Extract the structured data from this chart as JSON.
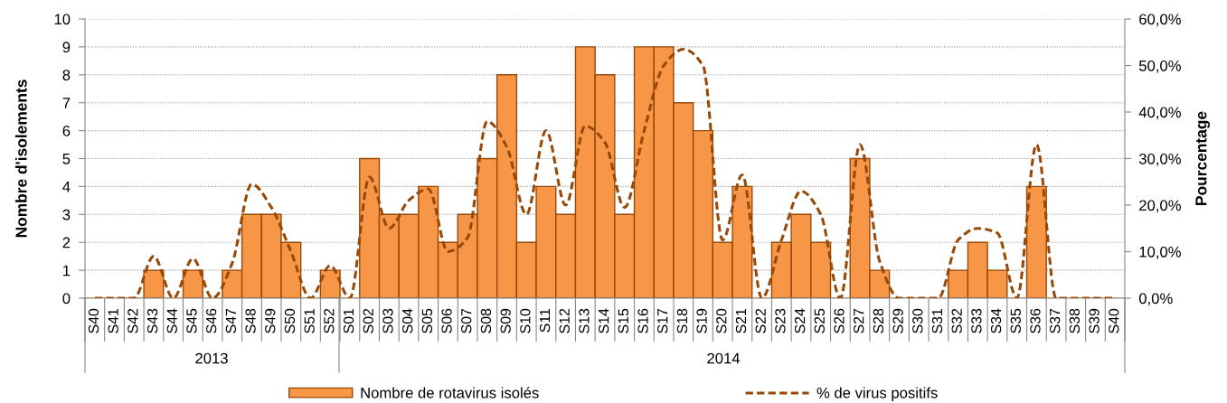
{
  "chart_data": {
    "type": "bar",
    "ylabel": "Nombre d'isolements",
    "y2label": "Pourcentage",
    "categories": [
      "S40",
      "S41",
      "S42",
      "S43",
      "S44",
      "S45",
      "S46",
      "S47",
      "S48",
      "S49",
      "S50",
      "S51",
      "S52",
      "S01",
      "S02",
      "S03",
      "S04",
      "S05",
      "S06",
      "S07",
      "S08",
      "S09",
      "S10",
      "S11",
      "S12",
      "S13",
      "S14",
      "S15",
      "S16",
      "S17",
      "S18",
      "S19",
      "S20",
      "S21",
      "S22",
      "S23",
      "S24",
      "S25",
      "S26",
      "S27",
      "S28",
      "S29",
      "S30",
      "S31",
      "S32",
      "S33",
      "S34",
      "S35",
      "S36",
      "S37",
      "S38",
      "S39",
      "S40"
    ],
    "series": [
      {
        "name": "Nombre de rotavirus isolés",
        "color": "#f79646",
        "values": [
          0,
          0,
          0,
          1,
          0,
          1,
          0,
          1,
          3,
          3,
          2,
          0,
          1,
          0,
          5,
          3,
          3,
          4,
          2,
          3,
          5,
          8,
          2,
          4,
          3,
          9,
          8,
          3,
          9,
          9,
          7,
          6,
          2,
          4,
          0,
          2,
          3,
          2,
          0,
          5,
          1,
          0,
          0,
          0,
          1,
          2,
          1,
          0,
          4,
          0,
          0,
          0,
          0
        ]
      },
      {
        "name": "% de virus positifs",
        "type": "line",
        "axis": "y2",
        "color": "#984807",
        "line_style": "dashed",
        "values": [
          0,
          0,
          0,
          9,
          0,
          8.5,
          0,
          7.5,
          24.5,
          19.5,
          10,
          0,
          7,
          0,
          26,
          15,
          21,
          23.5,
          10,
          13,
          38,
          32.5,
          18,
          36,
          20,
          37,
          33.5,
          19.5,
          36,
          50,
          53.5,
          50,
          12.5,
          26.5,
          0,
          12.5,
          23,
          18,
          0,
          33,
          8,
          0,
          0,
          0,
          12.5,
          15,
          14,
          0,
          33,
          0,
          0,
          0,
          0
        ]
      }
    ],
    "ylim": [
      0,
      10
    ],
    "yticks": [
      0,
      1,
      2,
      3,
      4,
      5,
      6,
      7,
      8,
      9,
      10
    ],
    "y2lim": [
      0,
      60
    ],
    "y2ticks": [
      {
        "value": 0,
        "label": "0,0%"
      },
      {
        "value": 10,
        "label": "10,0%"
      },
      {
        "value": 20,
        "label": "20,0%"
      },
      {
        "value": 30,
        "label": "30,0%"
      },
      {
        "value": 40,
        "label": "40,0%"
      },
      {
        "value": 50,
        "label": "50,0%"
      },
      {
        "value": 60,
        "label": "60,0%"
      }
    ],
    "grid": "y",
    "legend": "bottom",
    "annotations": [
      "2013",
      "2014"
    ]
  }
}
